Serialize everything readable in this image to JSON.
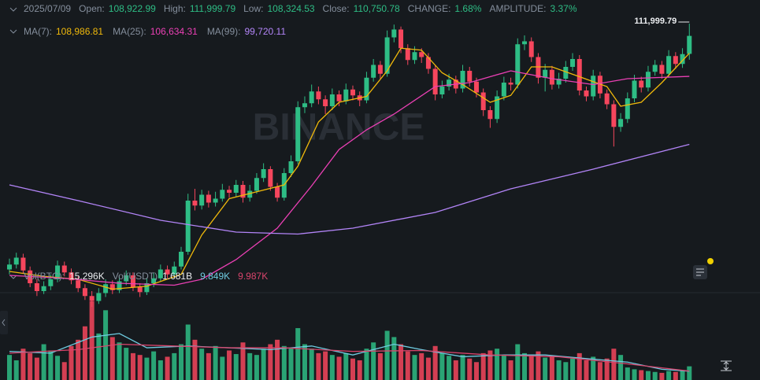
{
  "chart_data": {
    "type": "candlestick",
    "header": {
      "date": "2025/07/09",
      "fields": [
        {
          "label": "Open:",
          "value": "108,922.99"
        },
        {
          "label": "High:",
          "value": "111,999.79"
        },
        {
          "label": "Low:",
          "value": "108,324.53"
        },
        {
          "label": "Close:",
          "value": "110,750.78"
        },
        {
          "label": "CHANGE:",
          "value": "1.68%"
        },
        {
          "label": "AMPLITUDE:",
          "value": "3.37%"
        }
      ]
    },
    "watermark": "BINANCE",
    "high_label": "111,999.79",
    "up_color": "#2ebd85",
    "down_color": "#f6465d",
    "ylim": [
      84800,
      114400
    ],
    "volume_ylim": [
      0,
      95000
    ],
    "candles": [
      [
        87000,
        88100,
        86500,
        87500
      ],
      [
        87500,
        88700,
        87100,
        88200
      ],
      [
        88200,
        88600,
        86600,
        86900
      ],
      [
        86900,
        87300,
        85200,
        85600
      ],
      [
        85600,
        86000,
        84300,
        84800
      ],
      [
        84800,
        85800,
        84500,
        85300
      ],
      [
        85300,
        86500,
        84900,
        86000
      ],
      [
        86000,
        87900,
        85700,
        87400
      ],
      [
        87400,
        87800,
        86300,
        86700
      ],
      [
        86700,
        87100,
        85500,
        85900
      ],
      [
        85900,
        86300,
        84700,
        85100
      ],
      [
        85100,
        85500,
        83900,
        84300
      ],
      [
        84300,
        84800,
        83200,
        83800
      ],
      [
        83800,
        85100,
        83500,
        84600
      ],
      [
        84600,
        86000,
        84200,
        85500
      ],
      [
        85500,
        85900,
        84500,
        84900
      ],
      [
        84900,
        86300,
        84600,
        85800
      ],
      [
        85800,
        86900,
        85400,
        86400
      ],
      [
        86400,
        86700,
        84800,
        85200
      ],
      [
        85200,
        85600,
        84200,
        84700
      ],
      [
        84700,
        86100,
        84400,
        85600
      ],
      [
        85600,
        86700,
        85200,
        86100
      ],
      [
        86100,
        87500,
        85800,
        87000
      ],
      [
        87000,
        87400,
        86100,
        86500
      ],
      [
        86500,
        87800,
        86200,
        87300
      ],
      [
        87300,
        89300,
        87000,
        88800
      ],
      [
        88800,
        94700,
        88500,
        94000
      ],
      [
        94000,
        95200,
        93000,
        93500
      ],
      [
        93500,
        95100,
        93100,
        94600
      ],
      [
        94600,
        95000,
        93300,
        93800
      ],
      [
        93800,
        94900,
        93400,
        94200
      ],
      [
        94200,
        95700,
        93900,
        95100
      ],
      [
        95100,
        95500,
        94300,
        94800
      ],
      [
        94800,
        96100,
        94400,
        95600
      ],
      [
        95600,
        96000,
        93800,
        94300
      ],
      [
        94300,
        95600,
        93900,
        95000
      ],
      [
        95000,
        96800,
        94700,
        96300
      ],
      [
        96300,
        97800,
        95900,
        97200
      ],
      [
        97200,
        97500,
        95000,
        95400
      ],
      [
        95400,
        95800,
        93900,
        94300
      ],
      [
        94300,
        97300,
        94000,
        96800
      ],
      [
        96800,
        98600,
        96400,
        98000
      ],
      [
        98000,
        104100,
        97700,
        103500
      ],
      [
        103500,
        104600,
        102900,
        103900
      ],
      [
        103900,
        105800,
        103500,
        105100
      ],
      [
        105100,
        105600,
        103800,
        104300
      ],
      [
        104300,
        104700,
        102800,
        103600
      ],
      [
        103600,
        105400,
        103200,
        104800
      ],
      [
        104800,
        105200,
        103600,
        104100
      ],
      [
        104100,
        105900,
        103800,
        105300
      ],
      [
        105300,
        105700,
        104200,
        104700
      ],
      [
        104700,
        105100,
        103600,
        104200
      ],
      [
        104200,
        107100,
        103900,
        106500
      ],
      [
        106500,
        108400,
        106100,
        107800
      ],
      [
        107800,
        108200,
        106400,
        106900
      ],
      [
        106900,
        111300,
        106600,
        110600
      ],
      [
        110600,
        111900,
        110100,
        111400
      ],
      [
        111400,
        111700,
        109000,
        109500
      ],
      [
        109500,
        109900,
        107800,
        108300
      ],
      [
        108300,
        109700,
        107900,
        109100
      ],
      [
        109100,
        109500,
        108000,
        108600
      ],
      [
        108600,
        109000,
        106900,
        107400
      ],
      [
        107400,
        107800,
        104200,
        104800
      ],
      [
        104800,
        106200,
        104400,
        105600
      ],
      [
        105600,
        106900,
        105200,
        106300
      ],
      [
        106300,
        106700,
        104900,
        105400
      ],
      [
        105400,
        107800,
        105000,
        107200
      ],
      [
        107200,
        107600,
        105600,
        106100
      ],
      [
        106100,
        106500,
        104500,
        105000
      ],
      [
        105000,
        105400,
        102600,
        103200
      ],
      [
        103200,
        103600,
        101400,
        102300
      ],
      [
        102300,
        105200,
        101900,
        104600
      ],
      [
        104600,
        106600,
        104200,
        106000
      ],
      [
        106000,
        106500,
        105200,
        105800
      ],
      [
        105800,
        110500,
        105400,
        109900
      ],
      [
        109900,
        110800,
        109300,
        110200
      ],
      [
        110200,
        110600,
        108100,
        108600
      ],
      [
        108600,
        109000,
        105900,
        106500
      ],
      [
        106500,
        107900,
        105100,
        107300
      ],
      [
        107300,
        107700,
        105300,
        105800
      ],
      [
        105800,
        107000,
        105400,
        106400
      ],
      [
        106400,
        108200,
        106000,
        107600
      ],
      [
        107600,
        109000,
        107200,
        108400
      ],
      [
        108400,
        108800,
        104700,
        105200
      ],
      [
        105200,
        105600,
        104100,
        104600
      ],
      [
        104600,
        107300,
        104200,
        106700
      ],
      [
        106700,
        107100,
        104400,
        104900
      ],
      [
        104900,
        105300,
        103300,
        103800
      ],
      [
        103800,
        104200,
        99500,
        101500
      ],
      [
        101500,
        102900,
        101000,
        102300
      ],
      [
        102300,
        105000,
        101900,
        104400
      ],
      [
        104400,
        106800,
        104000,
        106200
      ],
      [
        106200,
        106600,
        105000,
        105500
      ],
      [
        105500,
        107700,
        105100,
        107100
      ],
      [
        107100,
        108300,
        106700,
        107800
      ],
      [
        107800,
        108200,
        106400,
        106900
      ],
      [
        106900,
        109300,
        106500,
        108700
      ],
      [
        108700,
        109100,
        107400,
        107900
      ],
      [
        107900,
        109500,
        107500,
        108900
      ],
      [
        108922.99,
        111999.79,
        108324.53,
        110750.78
      ]
    ],
    "volume": [
      28000,
      22000,
      35000,
      30000,
      25000,
      40000,
      33000,
      27000,
      20000,
      38000,
      45000,
      60000,
      88000,
      52000,
      78000,
      48000,
      42000,
      36000,
      30000,
      28000,
      25000,
      32000,
      22000,
      26000,
      30000,
      40000,
      62000,
      45000,
      35000,
      30000,
      38000,
      26000,
      33000,
      29000,
      42000,
      30000,
      28000,
      35000,
      40000,
      45000,
      38000,
      36000,
      58000,
      40000,
      35000,
      30000,
      32000,
      28000,
      26000,
      30000,
      24000,
      22000,
      35000,
      42000,
      30000,
      55000,
      48000,
      40000,
      32000,
      28000,
      30000,
      25000,
      38000,
      30000,
      27000,
      22000,
      28000,
      24000,
      20000,
      30000,
      33000,
      35000,
      28000,
      22000,
      40000,
      30000,
      28000,
      32000,
      25000,
      26000,
      22000,
      20000,
      24000,
      30000,
      22000,
      26000,
      20000,
      24000,
      35000,
      28000,
      14000,
      12000,
      11000,
      10000,
      9000,
      8000,
      10000,
      9000,
      11000,
      15296
    ],
    "ma_series": [
      {
        "name": "MA(7):",
        "value_label": "108,986.81",
        "color": "#f0b90b",
        "x": [
          0,
          5,
          10,
          15,
          20,
          25,
          28,
          32,
          36,
          40,
          42,
          45,
          48,
          52,
          55,
          57,
          60,
          63,
          66,
          70,
          73,
          76,
          79,
          83,
          87,
          89,
          92,
          95,
          97,
          99
        ],
        "values": [
          86800,
          86300,
          86000,
          85000,
          85300,
          86500,
          90500,
          94200,
          94900,
          95600,
          97500,
          102000,
          104000,
          104600,
          107200,
          109500,
          109300,
          107000,
          105800,
          104000,
          104700,
          107600,
          107600,
          106600,
          105600,
          103600,
          104000,
          106000,
          107500,
          108986.81
        ]
      },
      {
        "name": "MA(25):",
        "value_label": "106,634.31",
        "color": "#eb40b5",
        "x": [
          0,
          8,
          16,
          24,
          28,
          33,
          39,
          44,
          48,
          52,
          56,
          62,
          67,
          73,
          79,
          85,
          90,
          99
        ],
        "values": [
          86400,
          86100,
          85600,
          85400,
          86000,
          88000,
          91200,
          95500,
          99200,
          101200,
          102800,
          105600,
          106000,
          107200,
          106400,
          105800,
          106400,
          106634.31
        ]
      },
      {
        "name": "MA(99):",
        "value_label": "99,720.11",
        "color": "#b385f8",
        "x": [
          0,
          10,
          22,
          33,
          42,
          50,
          62,
          73,
          85,
          99
        ],
        "values": [
          95600,
          94000,
          92000,
          90800,
          90600,
          91200,
          92800,
          95200,
          97200,
          99720.11
        ]
      }
    ],
    "volume_legend": [
      {
        "label": "Vol(BTC):",
        "value": "15.296K"
      },
      {
        "label": "Vol(USDT)",
        "value": "1.681B"
      }
    ],
    "volume_ma": [
      {
        "value_label": "9.849K",
        "color": "#6ecbe0",
        "x": [
          0,
          6,
          12,
          16,
          20,
          26,
          32,
          38,
          44,
          50,
          56,
          60,
          66,
          72,
          78,
          84,
          90,
          95,
          99
        ],
        "values": [
          32000,
          30000,
          48000,
          52000,
          36000,
          38000,
          36000,
          34000,
          38000,
          28000,
          40000,
          34000,
          26000,
          28000,
          28000,
          24000,
          20000,
          12000,
          9849
        ]
      },
      {
        "value_label": "9.987K",
        "color": "#d9446c",
        "x": [
          0,
          10,
          16,
          24,
          32,
          40,
          50,
          60,
          70,
          80,
          90,
          99
        ],
        "values": [
          30000,
          34000,
          40000,
          38000,
          36000,
          36000,
          32000,
          33000,
          28000,
          26000,
          18000,
          9987
        ]
      }
    ]
  }
}
